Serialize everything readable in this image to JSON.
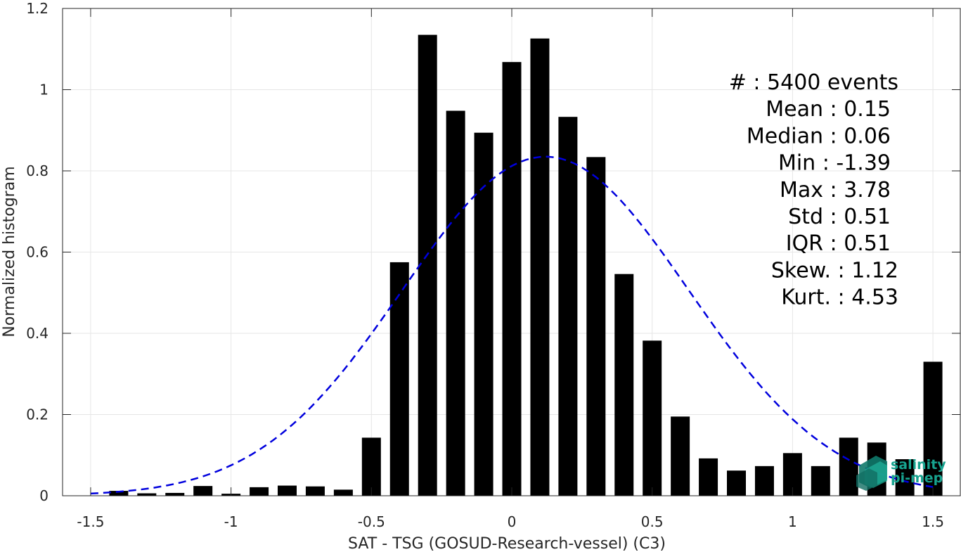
{
  "chart_data": {
    "type": "bar",
    "xlabel": "SAT - TSG (GOSUD-Research-vessel) (C3)",
    "ylabel": "Normalized histogram",
    "xlim": [
      -1.6,
      1.6
    ],
    "ylim": [
      0,
      1.2
    ],
    "grid": true,
    "xticks": [
      -1.5,
      -1,
      -0.5,
      0,
      0.5,
      1,
      1.5
    ],
    "xtick_labels": [
      "-1.5",
      "-1",
      "-0.5",
      "0",
      "0.5",
      "1",
      "1.5"
    ],
    "yticks": [
      0,
      0.2,
      0.4,
      0.6,
      0.8,
      1,
      1.2
    ],
    "ytick_labels": [
      "0",
      "0.2",
      "0.4",
      "0.6",
      "0.8",
      "1",
      "1.2"
    ],
    "bar_color": "#000000",
    "bin_width": 0.1,
    "bars": {
      "x": [
        -1.4,
        -1.3,
        -1.2,
        -1.1,
        -1.0,
        -0.9,
        -0.8,
        -0.7,
        -0.6,
        -0.5,
        -0.4,
        -0.3,
        -0.2,
        -0.1,
        0.0,
        0.1,
        0.2,
        0.3,
        0.4,
        0.5,
        0.6,
        0.7,
        0.8,
        0.9,
        1.0,
        1.1,
        1.2,
        1.3,
        1.4,
        1.5
      ],
      "values": [
        0.012,
        0.006,
        0.007,
        0.024,
        0.005,
        0.021,
        0.025,
        0.023,
        0.015,
        0.143,
        0.575,
        1.135,
        0.948,
        0.894,
        1.068,
        1.126,
        0.933,
        0.834,
        0.546,
        0.382,
        0.195,
        0.092,
        0.062,
        0.073,
        0.105,
        0.073,
        0.143,
        0.131,
        0.09,
        0.33
      ]
    },
    "fit_curve": {
      "style": "dashed",
      "color": "#0000dd",
      "mean": 0.15,
      "std": 0.51,
      "x_range": [
        -1.5,
        1.5
      ],
      "peak": 0.835
    },
    "stats": [
      {
        "label": "#  : 5400 events"
      },
      {
        "label": "Mean : 0.15"
      },
      {
        "label": "Median : 0.06"
      },
      {
        "label": "Min : -1.39"
      },
      {
        "label": "Max : 3.78"
      },
      {
        "label": "Std : 0.51"
      },
      {
        "label": "IQR : 0.51"
      },
      {
        "label": "Skew. : 1.12"
      },
      {
        "label": "Kurt. : 4.53"
      }
    ]
  },
  "logo": {
    "line1": "salinity",
    "line2": "pi-mep",
    "color": "#17a38f",
    "icon": "salinity-logo-icon"
  }
}
